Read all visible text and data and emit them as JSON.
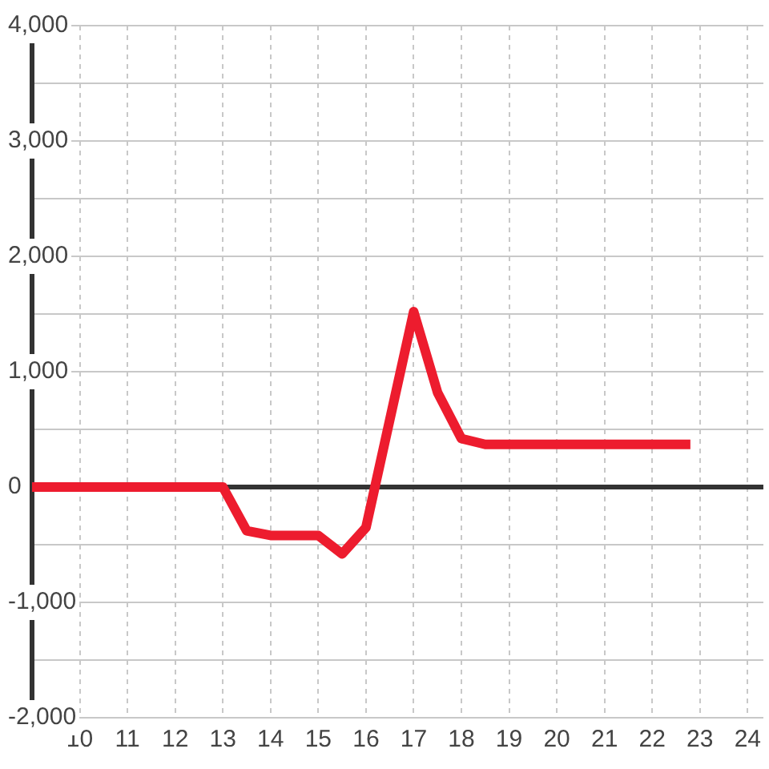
{
  "chart_data": {
    "type": "line",
    "x": [
      9,
      13,
      13.5,
      14,
      15,
      15.5,
      16,
      17,
      17.5,
      18,
      18.5,
      22.8
    ],
    "values": [
      0,
      0,
      -380,
      -420,
      -420,
      -580,
      -350,
      1520,
      820,
      420,
      370,
      370
    ],
    "color": "#ed1c2e",
    "xlim": [
      9,
      24.33
    ],
    "xticks": [
      10,
      11,
      12,
      13,
      14,
      15,
      16,
      17,
      18,
      19,
      20,
      21,
      22,
      23,
      24
    ],
    "ylim": [
      -2000,
      4000
    ],
    "yticks": [
      {
        "value": -2000,
        "label": "-2,000"
      },
      {
        "value": -1500,
        "label": null
      },
      {
        "value": -1000,
        "label": "-1,000"
      },
      {
        "value": -500,
        "label": null
      },
      0,
      {
        "value": 500,
        "label": null
      },
      {
        "value": 1000,
        "label": "1,000"
      },
      {
        "value": 1500,
        "label": null
      },
      {
        "value": 2000,
        "label": "2,000"
      },
      {
        "value": 2500,
        "label": null
      },
      {
        "value": 3000,
        "label": "3,000"
      },
      {
        "value": 3500,
        "label": null
      },
      {
        "value": 4000,
        "label": "4,000"
      }
    ],
    "grid": true
  }
}
